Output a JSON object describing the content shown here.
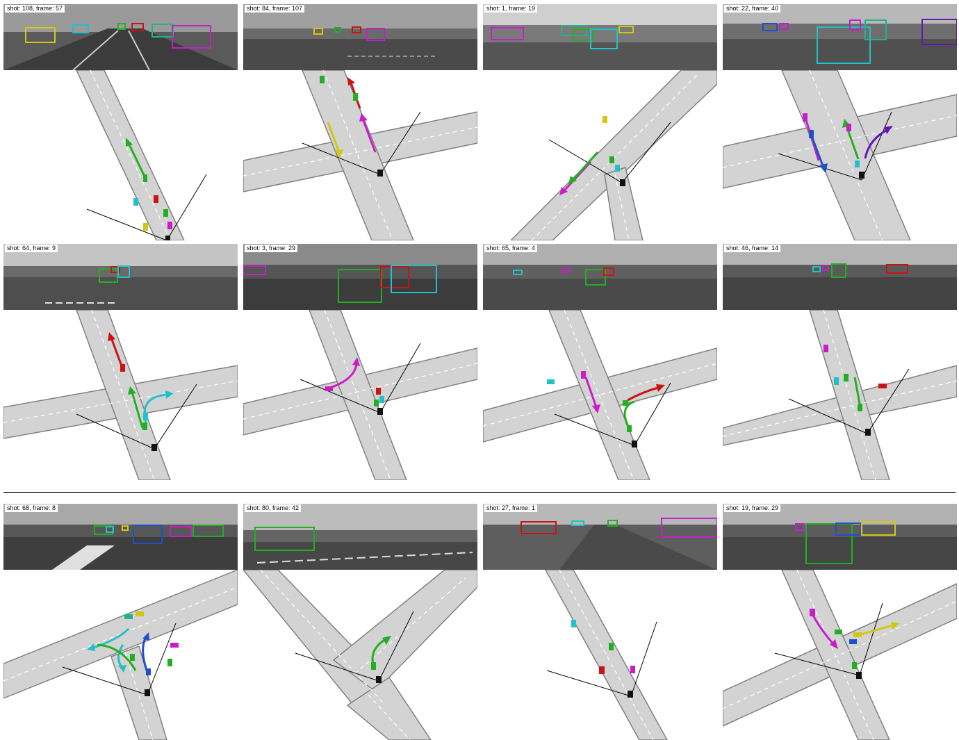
{
  "panels": [
    {
      "caption": "shot: 108, frame: 57"
    },
    {
      "caption": "shot: 84, frame: 107"
    },
    {
      "caption": "shot: 1, frame: 19"
    },
    {
      "caption": "shot: 22, frame: 40"
    },
    {
      "caption": "shot: 64, frame: 9"
    },
    {
      "caption": "shot: 3, frame: 29"
    },
    {
      "caption": "shot: 65, frame: 4"
    },
    {
      "caption": "shot: 46, frame: 14"
    },
    {
      "caption": "shot: 68, frame: 8"
    },
    {
      "caption": "shot: 80, frame: 42"
    },
    {
      "caption": "shot: 27, frame: 1"
    },
    {
      "caption": "shot: 19, frame: 29"
    }
  ],
  "colors": {
    "road": "#d3d3d3",
    "road_edge": "#808080",
    "lane_marking": "#ffffff",
    "ego_vehicle": "#111111",
    "green": "#22b022",
    "red": "#c81414",
    "cyan": "#22c0c8",
    "magenta": "#c81ec8",
    "yellow": "#d2c814",
    "blue": "#1e50c8",
    "teal": "#1eb48c",
    "purple": "#6414b4"
  }
}
